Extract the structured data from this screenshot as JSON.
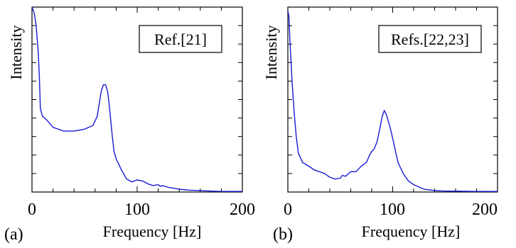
{
  "chart_data": [
    {
      "type": "line",
      "panel_label": "(a)",
      "legend": "Ref.[21]",
      "xlabel": "Frequency [Hz]",
      "ylabel": "Intensity",
      "xlim": [
        0,
        200
      ],
      "xticks": [
        "0",
        "100",
        "200"
      ],
      "y_tick_labels": false,
      "grid": false,
      "line_color": "#1a1ad6",
      "series": [
        {
          "x": [
            0,
            2,
            4,
            6,
            7,
            8,
            10,
            14,
            20,
            30,
            40,
            50,
            58,
            62,
            64,
            66,
            68,
            70,
            72,
            74,
            76,
            78,
            80,
            85,
            90,
            95,
            100,
            105,
            110,
            115,
            120,
            122,
            124,
            130,
            140,
            150,
            160,
            170,
            180,
            190,
            200
          ],
          "y": [
            1.0,
            0.97,
            0.9,
            0.75,
            0.62,
            0.45,
            0.41,
            0.39,
            0.35,
            0.33,
            0.33,
            0.34,
            0.36,
            0.41,
            0.48,
            0.55,
            0.58,
            0.58,
            0.54,
            0.44,
            0.32,
            0.22,
            0.18,
            0.12,
            0.07,
            0.055,
            0.065,
            0.06,
            0.045,
            0.035,
            0.04,
            0.03,
            0.035,
            0.025,
            0.015,
            0.01,
            0.008,
            0.005,
            0.003,
            0.003,
            0.003
          ]
        }
      ]
    },
    {
      "type": "line",
      "panel_label": "(b)",
      "legend": "Refs.[22,23]",
      "xlabel": "Frequency [Hz]",
      "ylabel": "Intensity",
      "xlim": [
        0,
        200
      ],
      "xticks": [
        "0",
        "100",
        "200"
      ],
      "y_tick_labels": false,
      "grid": false,
      "line_color": "#1a1ad6",
      "series": [
        {
          "x": [
            0,
            1,
            2,
            4,
            6,
            8,
            10,
            14,
            20,
            25,
            30,
            35,
            40,
            45,
            50,
            52,
            55,
            58,
            60,
            65,
            70,
            75,
            78,
            80,
            82,
            85,
            88,
            90,
            92,
            94,
            96,
            98,
            100,
            105,
            110,
            115,
            120,
            130,
            140,
            150,
            160,
            170,
            180,
            190,
            200
          ],
          "y": [
            0.98,
            0.95,
            0.82,
            0.6,
            0.43,
            0.3,
            0.21,
            0.16,
            0.14,
            0.12,
            0.11,
            0.1,
            0.08,
            0.07,
            0.075,
            0.09,
            0.085,
            0.1,
            0.11,
            0.11,
            0.14,
            0.16,
            0.2,
            0.22,
            0.23,
            0.27,
            0.35,
            0.41,
            0.44,
            0.42,
            0.38,
            0.34,
            0.29,
            0.16,
            0.1,
            0.06,
            0.04,
            0.015,
            0.008,
            0.005,
            0.005,
            0.004,
            0.003,
            0.003,
            0.003
          ]
        }
      ]
    }
  ]
}
